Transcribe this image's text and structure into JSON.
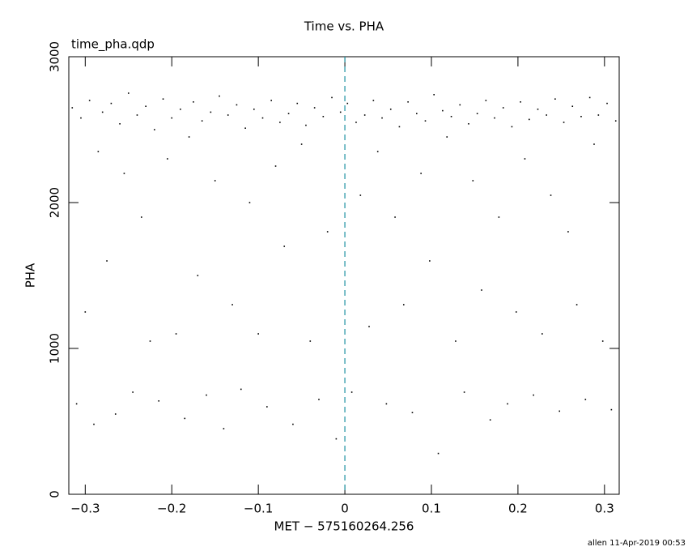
{
  "chart_data": {
    "type": "scatter",
    "title": "Time vs. PHA",
    "subtitle": "time_pha.qdp",
    "xlabel": "MET − 575160264.256",
    "ylabel": "PHA",
    "footer": "allen 11-Apr-2019 00:53",
    "xlim": [
      -0.319,
      0.317
    ],
    "ylim": [
      0,
      3000
    ],
    "xticks": [
      {
        "value": -0.3,
        "label": "−0.3"
      },
      {
        "value": -0.2,
        "label": "−0.2"
      },
      {
        "value": -0.1,
        "label": "−0.1"
      },
      0,
      0.1,
      0.2,
      0.3
    ],
    "yticks": [
      0,
      1000,
      2000,
      3000
    ],
    "vline": {
      "x": 0,
      "color": "#1a8fa0"
    },
    "color": "#000000",
    "x": [
      -0.315,
      -0.31,
      -0.305,
      -0.3,
      -0.295,
      -0.29,
      -0.285,
      -0.28,
      -0.275,
      -0.27,
      -0.265,
      -0.26,
      -0.255,
      -0.25,
      -0.245,
      -0.24,
      -0.235,
      -0.23,
      -0.225,
      -0.22,
      -0.215,
      -0.21,
      -0.205,
      -0.2,
      -0.195,
      -0.19,
      -0.185,
      -0.18,
      -0.175,
      -0.17,
      -0.165,
      -0.16,
      -0.155,
      -0.15,
      -0.145,
      -0.14,
      -0.135,
      -0.13,
      -0.125,
      -0.12,
      -0.115,
      -0.11,
      -0.105,
      -0.1,
      -0.095,
      -0.09,
      -0.085,
      -0.08,
      -0.075,
      -0.07,
      -0.065,
      -0.06,
      -0.055,
      -0.05,
      -0.045,
      -0.04,
      -0.035,
      -0.03,
      -0.025,
      -0.02,
      -0.015,
      -0.01,
      -0.005,
      0.003,
      0.008,
      0.013,
      0.018,
      0.023,
      0.028,
      0.033,
      0.038,
      0.043,
      0.048,
      0.053,
      0.058,
      0.063,
      0.068,
      0.073,
      0.078,
      0.083,
      0.088,
      0.093,
      0.098,
      0.103,
      0.108,
      0.113,
      0.118,
      0.123,
      0.128,
      0.133,
      0.138,
      0.143,
      0.148,
      0.153,
      0.158,
      0.163,
      0.168,
      0.173,
      0.178,
      0.183,
      0.188,
      0.193,
      0.198,
      0.203,
      0.208,
      0.213,
      0.218,
      0.223,
      0.228,
      0.233,
      0.238,
      0.243,
      0.248,
      0.253,
      0.258,
      0.263,
      0.268,
      0.273,
      0.278,
      0.283,
      0.288,
      0.293,
      0.298,
      0.303,
      0.308,
      0.313
    ],
    "y": [
      2650,
      620,
      2580,
      1250,
      2700,
      480,
      2350,
      2620,
      1600,
      2680,
      550,
      2540,
      2200,
      2750,
      700,
      2600,
      1900,
      2660,
      1050,
      2500,
      640,
      2710,
      2300,
      2580,
      1100,
      2640,
      520,
      2450,
      2690,
      1500,
      2560,
      680,
      2620,
      2150,
      2730,
      450,
      2600,
      1300,
      2670,
      720,
      2510,
      2000,
      2640,
      1100,
      2580,
      600,
      2700,
      2250,
      2550,
      1700,
      2610,
      480,
      2680,
      2400,
      2530,
      1050,
      2650,
      650,
      2590,
      1800,
      2720,
      380,
      2620,
      2680,
      700,
      2550,
      2050,
      2600,
      1150,
      2700,
      2350,
      2580,
      620,
      2640,
      1900,
      2520,
      1300,
      2690,
      560,
      2610,
      2200,
      2560,
      1600,
      2740,
      280,
      2630,
      2450,
      2590,
      1050,
      2670,
      700,
      2540,
      2150,
      2610,
      1400,
      2700,
      510,
      2580,
      1900,
      2650,
      620,
      2520,
      1250,
      2690,
      2300,
      2570,
      680,
      2640,
      1100,
      2600,
      2050,
      2710,
      570,
      2550,
      1800,
      2660,
      1300,
      2590,
      650,
      2720,
      2400,
      2600,
      1050,
      2680,
      580,
      2560
    ]
  }
}
